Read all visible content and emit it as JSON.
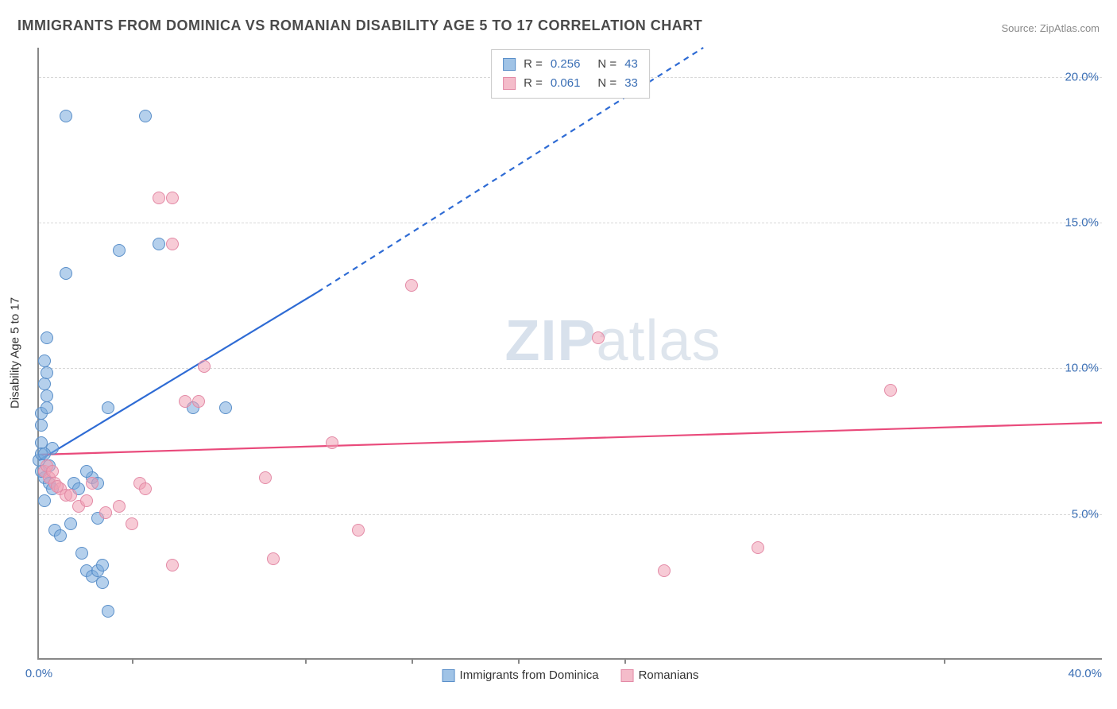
{
  "title": "IMMIGRANTS FROM DOMINICA VS ROMANIAN DISABILITY AGE 5 TO 17 CORRELATION CHART",
  "source": "Source: ZipAtlas.com",
  "watermark_bold": "ZIP",
  "watermark_thin": "atlas",
  "chart": {
    "type": "scatter",
    "ylabel": "Disability Age 5 to 17",
    "xlim": [
      0,
      40
    ],
    "ylim": [
      0,
      21
    ],
    "xtick_positions": [
      0,
      3.5,
      10,
      14,
      18,
      22,
      34,
      40
    ],
    "xtick_labels": {
      "min": "0.0%",
      "max": "40.0%"
    },
    "yticks": [
      {
        "v": 5,
        "label": "5.0%"
      },
      {
        "v": 10,
        "label": "10.0%"
      },
      {
        "v": 15,
        "label": "15.0%"
      },
      {
        "v": 20,
        "label": "20.0%"
      }
    ],
    "grid_color": "#d8d8d8",
    "axis_color": "#888888",
    "background_color": "#ffffff",
    "marker_radius": 8,
    "series": [
      {
        "id": "s1",
        "name": "Immigrants from Dominica",
        "fill": "rgba(120,170,220,0.55)",
        "stroke": "#5a8fc9",
        "line_color": "#2e6bd4",
        "R": "0.256",
        "N": "43",
        "trend": {
          "solid": [
            [
              0.0,
              6.8
            ],
            [
              10.5,
              12.6
            ]
          ],
          "dashed": [
            [
              10.5,
              12.6
            ],
            [
              25.0,
              21.0
            ]
          ]
        },
        "points": [
          [
            0.0,
            6.8
          ],
          [
            0.1,
            7.4
          ],
          [
            0.1,
            8.4
          ],
          [
            0.2,
            9.4
          ],
          [
            0.2,
            10.2
          ],
          [
            0.3,
            9.0
          ],
          [
            0.3,
            11.0
          ],
          [
            1.0,
            18.6
          ],
          [
            1.0,
            13.2
          ],
          [
            0.2,
            6.2
          ],
          [
            0.4,
            6.0
          ],
          [
            0.5,
            5.8
          ],
          [
            0.2,
            5.4
          ],
          [
            0.6,
            4.4
          ],
          [
            0.8,
            4.2
          ],
          [
            1.2,
            4.6
          ],
          [
            1.6,
            3.6
          ],
          [
            1.8,
            3.0
          ],
          [
            2.0,
            2.8
          ],
          [
            2.2,
            3.0
          ],
          [
            2.4,
            2.6
          ],
          [
            2.6,
            1.6
          ],
          [
            2.0,
            6.2
          ],
          [
            2.2,
            6.0
          ],
          [
            2.6,
            8.6
          ],
          [
            3.0,
            14.0
          ],
          [
            4.0,
            18.6
          ],
          [
            4.5,
            14.2
          ],
          [
            5.8,
            8.6
          ],
          [
            7.0,
            8.6
          ],
          [
            0.1,
            7.0
          ],
          [
            0.1,
            8.0
          ],
          [
            0.3,
            8.6
          ],
          [
            0.3,
            9.8
          ],
          [
            0.4,
            6.6
          ],
          [
            0.5,
            7.2
          ],
          [
            1.3,
            6.0
          ],
          [
            1.5,
            5.8
          ],
          [
            1.8,
            6.4
          ],
          [
            2.2,
            4.8
          ],
          [
            2.4,
            3.2
          ],
          [
            0.1,
            6.4
          ],
          [
            0.2,
            7.0
          ]
        ]
      },
      {
        "id": "s2",
        "name": "Romanians",
        "fill": "rgba(240,160,180,0.55)",
        "stroke": "#e38aa6",
        "line_color": "#e94a7b",
        "R": "0.061",
        "N": "33",
        "trend": {
          "solid": [
            [
              0.0,
              7.0
            ],
            [
              40.0,
              8.1
            ]
          ],
          "dashed": null
        },
        "points": [
          [
            0.2,
            6.4
          ],
          [
            0.4,
            6.2
          ],
          [
            0.6,
            6.0
          ],
          [
            0.8,
            5.8
          ],
          [
            1.0,
            5.6
          ],
          [
            1.2,
            5.6
          ],
          [
            1.5,
            5.2
          ],
          [
            1.8,
            5.4
          ],
          [
            2.0,
            6.0
          ],
          [
            2.5,
            5.0
          ],
          [
            3.0,
            5.2
          ],
          [
            3.5,
            4.6
          ],
          [
            3.8,
            6.0
          ],
          [
            4.0,
            5.8
          ],
          [
            4.5,
            15.8
          ],
          [
            5.0,
            15.8
          ],
          [
            5.0,
            14.2
          ],
          [
            5.5,
            8.8
          ],
          [
            6.0,
            8.8
          ],
          [
            6.2,
            10.0
          ],
          [
            5.0,
            3.2
          ],
          [
            8.5,
            6.2
          ],
          [
            8.8,
            3.4
          ],
          [
            11.0,
            7.4
          ],
          [
            12.0,
            4.4
          ],
          [
            14.0,
            12.8
          ],
          [
            21.0,
            11.0
          ],
          [
            23.5,
            3.0
          ],
          [
            27.0,
            3.8
          ],
          [
            32.0,
            9.2
          ],
          [
            0.3,
            6.6
          ],
          [
            0.5,
            6.4
          ],
          [
            0.7,
            5.9
          ]
        ]
      }
    ],
    "legend_top_labels": {
      "R": "R =",
      "N": "N ="
    },
    "legend_bottom": [
      "Immigrants from Dominica",
      "Romanians"
    ]
  }
}
